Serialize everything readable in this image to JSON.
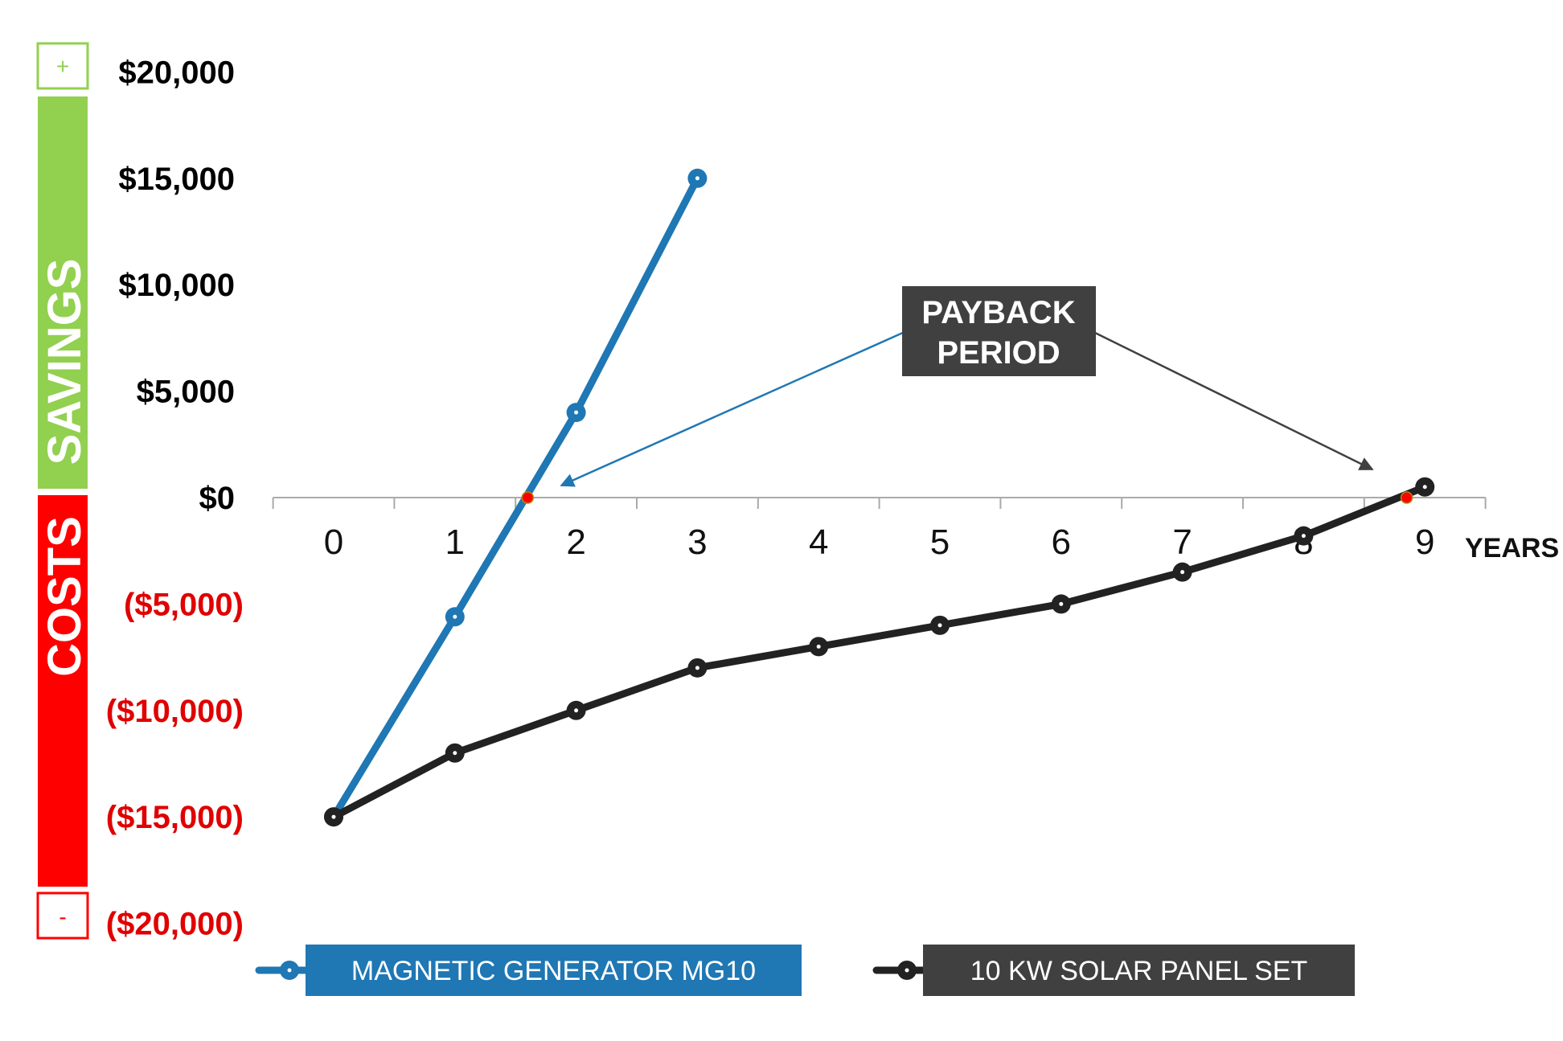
{
  "chart_data": {
    "type": "line",
    "x": [
      0,
      1,
      2,
      3,
      4,
      5,
      6,
      7,
      8,
      9
    ],
    "xlabel": "YEARS",
    "x_tick_labels": [
      "0",
      "1",
      "2",
      "3",
      "4",
      "5",
      "6",
      "7",
      "8",
      "9"
    ],
    "ylim": [
      -20000,
      20000
    ],
    "y_ticks": [
      20000,
      15000,
      10000,
      5000,
      0,
      -5000,
      -10000,
      -15000,
      -20000
    ],
    "y_tick_labels": [
      "$20,000",
      "$15,000",
      "$10,000",
      "$5,000",
      "$0",
      "($5,000)",
      "($10,000)",
      "($15,000)",
      "($20,000)"
    ],
    "series": [
      {
        "name": "MAGNETIC GENERATOR MG10",
        "color": "#1f77b4",
        "x": [
          0,
          1,
          2,
          3
        ],
        "values": [
          -15000,
          -5600,
          4000,
          15000
        ]
      },
      {
        "name": "10 KW SOLAR PANEL SET",
        "color": "#222222",
        "x": [
          0,
          1,
          2,
          3,
          4,
          5,
          6,
          7,
          8,
          9
        ],
        "values": [
          -15000,
          -12000,
          -10000,
          -8000,
          -7000,
          -6000,
          -5000,
          -3500,
          -1800,
          500
        ]
      }
    ],
    "payback_points": [
      {
        "series": "MAGNETIC GENERATOR MG10",
        "x": 1.6,
        "y": 0
      },
      {
        "series": "10 KW SOLAR PANEL SET",
        "x": 8.85,
        "y": 0
      }
    ],
    "annotation": {
      "lines": [
        "PAYBACK",
        "PERIOD"
      ]
    },
    "side_labels": {
      "savings": "SAVINGS",
      "costs": "COSTS",
      "plus": "+",
      "minus": "-"
    },
    "colors": {
      "savings": "#92d050",
      "costs": "#ff0000",
      "positive_label": "#000000",
      "negative_label": "#e00000",
      "callout_bg": "#404040",
      "axis": "#aaaaaa",
      "payback_marker": "#ff0000"
    },
    "legend_position": "bottom"
  }
}
